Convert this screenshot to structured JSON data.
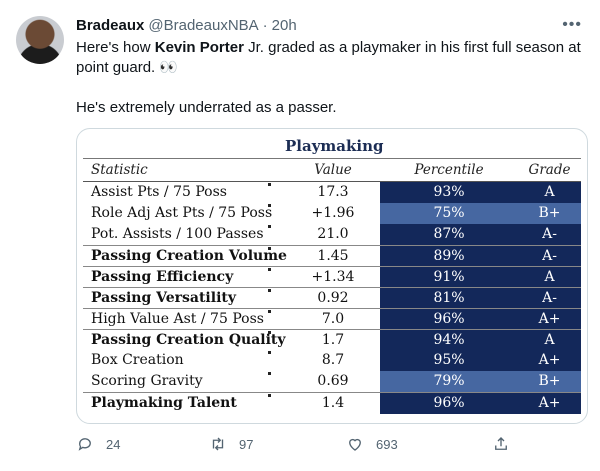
{
  "tweet": {
    "display_name": "Bradeaux",
    "handle": "@BradeauxNBA",
    "separator": "·",
    "time": "20h",
    "text_line1_a": "Here's how ",
    "text_line1_bold": "Kevin Porter",
    "text_line1_b": " Jr. graded as a playmaker in his first full season at",
    "text_line2": "point guard. 👀",
    "text_line3": "He's extremely underrated as a passer."
  },
  "table": {
    "title": "Playmaking",
    "headers": {
      "statistic": "Statistic",
      "value": "Value",
      "percentile": "Percentile",
      "grade": "Grade"
    },
    "colors": {
      "dark": "#13285a",
      "light": "#4667a1"
    },
    "rows": [
      {
        "stat": "Assist Pts / 75 Poss",
        "value": "17.3",
        "percentile": "93%",
        "grade": "A",
        "bold": false,
        "shade": "dark"
      },
      {
        "stat": "Role Adj Ast Pts / 75 Poss",
        "value": "+1.96",
        "percentile": "75%",
        "grade": "B+",
        "bold": false,
        "shade": "light"
      },
      {
        "stat": "Pot. Assists / 100 Passes",
        "value": "21.0",
        "percentile": "87%",
        "grade": "A-",
        "bold": false,
        "shade": "dark"
      },
      {
        "stat": "Passing Creation Volume",
        "value": "1.45",
        "percentile": "89%",
        "grade": "A-",
        "bold": true,
        "shade": "dark"
      },
      {
        "stat": "Passing Efficiency",
        "value": "+1.34",
        "percentile": "91%",
        "grade": "A",
        "bold": true,
        "shade": "dark"
      },
      {
        "stat": "Passing Versatility",
        "value": "0.92",
        "percentile": "81%",
        "grade": "A-",
        "bold": true,
        "shade": "dark"
      },
      {
        "stat": "High Value Ast / 75 Poss",
        "value": "7.0",
        "percentile": "96%",
        "grade": "A+",
        "bold": false,
        "shade": "dark"
      },
      {
        "stat": "Passing Creation Quality",
        "value": "1.7",
        "percentile": "94%",
        "grade": "A",
        "bold": true,
        "shade": "dark"
      },
      {
        "stat": "Box Creation",
        "value": "8.7",
        "percentile": "95%",
        "grade": "A+",
        "bold": false,
        "shade": "dark"
      },
      {
        "stat": "Scoring Gravity",
        "value": "0.69",
        "percentile": "79%",
        "grade": "B+",
        "bold": false,
        "shade": "light"
      },
      {
        "stat": "Playmaking Talent",
        "value": "1.4",
        "percentile": "96%",
        "grade": "A+",
        "bold": true,
        "shade": "dark"
      }
    ]
  },
  "actions": {
    "replies": "24",
    "retweets": "97",
    "likes": "693",
    "icons": [
      "reply-icon",
      "retweet-icon",
      "like-icon",
      "share-icon"
    ]
  }
}
